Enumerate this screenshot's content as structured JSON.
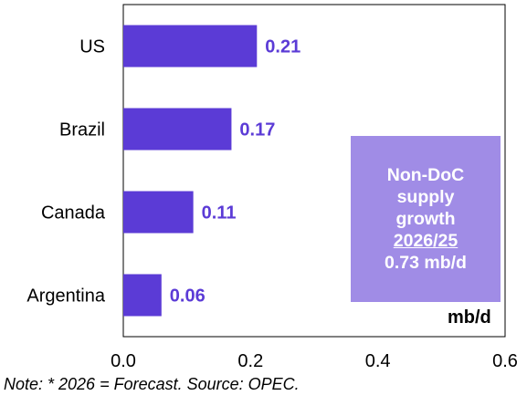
{
  "chart_data": {
    "type": "bar",
    "orientation": "horizontal",
    "categories": [
      "US",
      "Brazil",
      "Canada",
      "Argentina"
    ],
    "values": [
      0.21,
      0.17,
      0.11,
      0.06
    ],
    "data_labels": [
      "0.21",
      "0.17",
      "0.11",
      "0.06"
    ],
    "xlim": [
      0,
      0.6
    ],
    "x_ticks": [
      "0.0",
      "0.2",
      "0.4",
      "0.6"
    ],
    "unit_label": "mb/d",
    "grid": false,
    "bar_color": "#5b3bd6",
    "label_color": "#5b3bd6"
  },
  "info_box": {
    "line1": "Non-DoC",
    "line2": "supply",
    "line3": "growth",
    "line4": "2026/25",
    "line5": "0.73 mb/d",
    "background": "#a08ce6"
  },
  "note": "Note: * 2026 = Forecast. Source: OPEC."
}
